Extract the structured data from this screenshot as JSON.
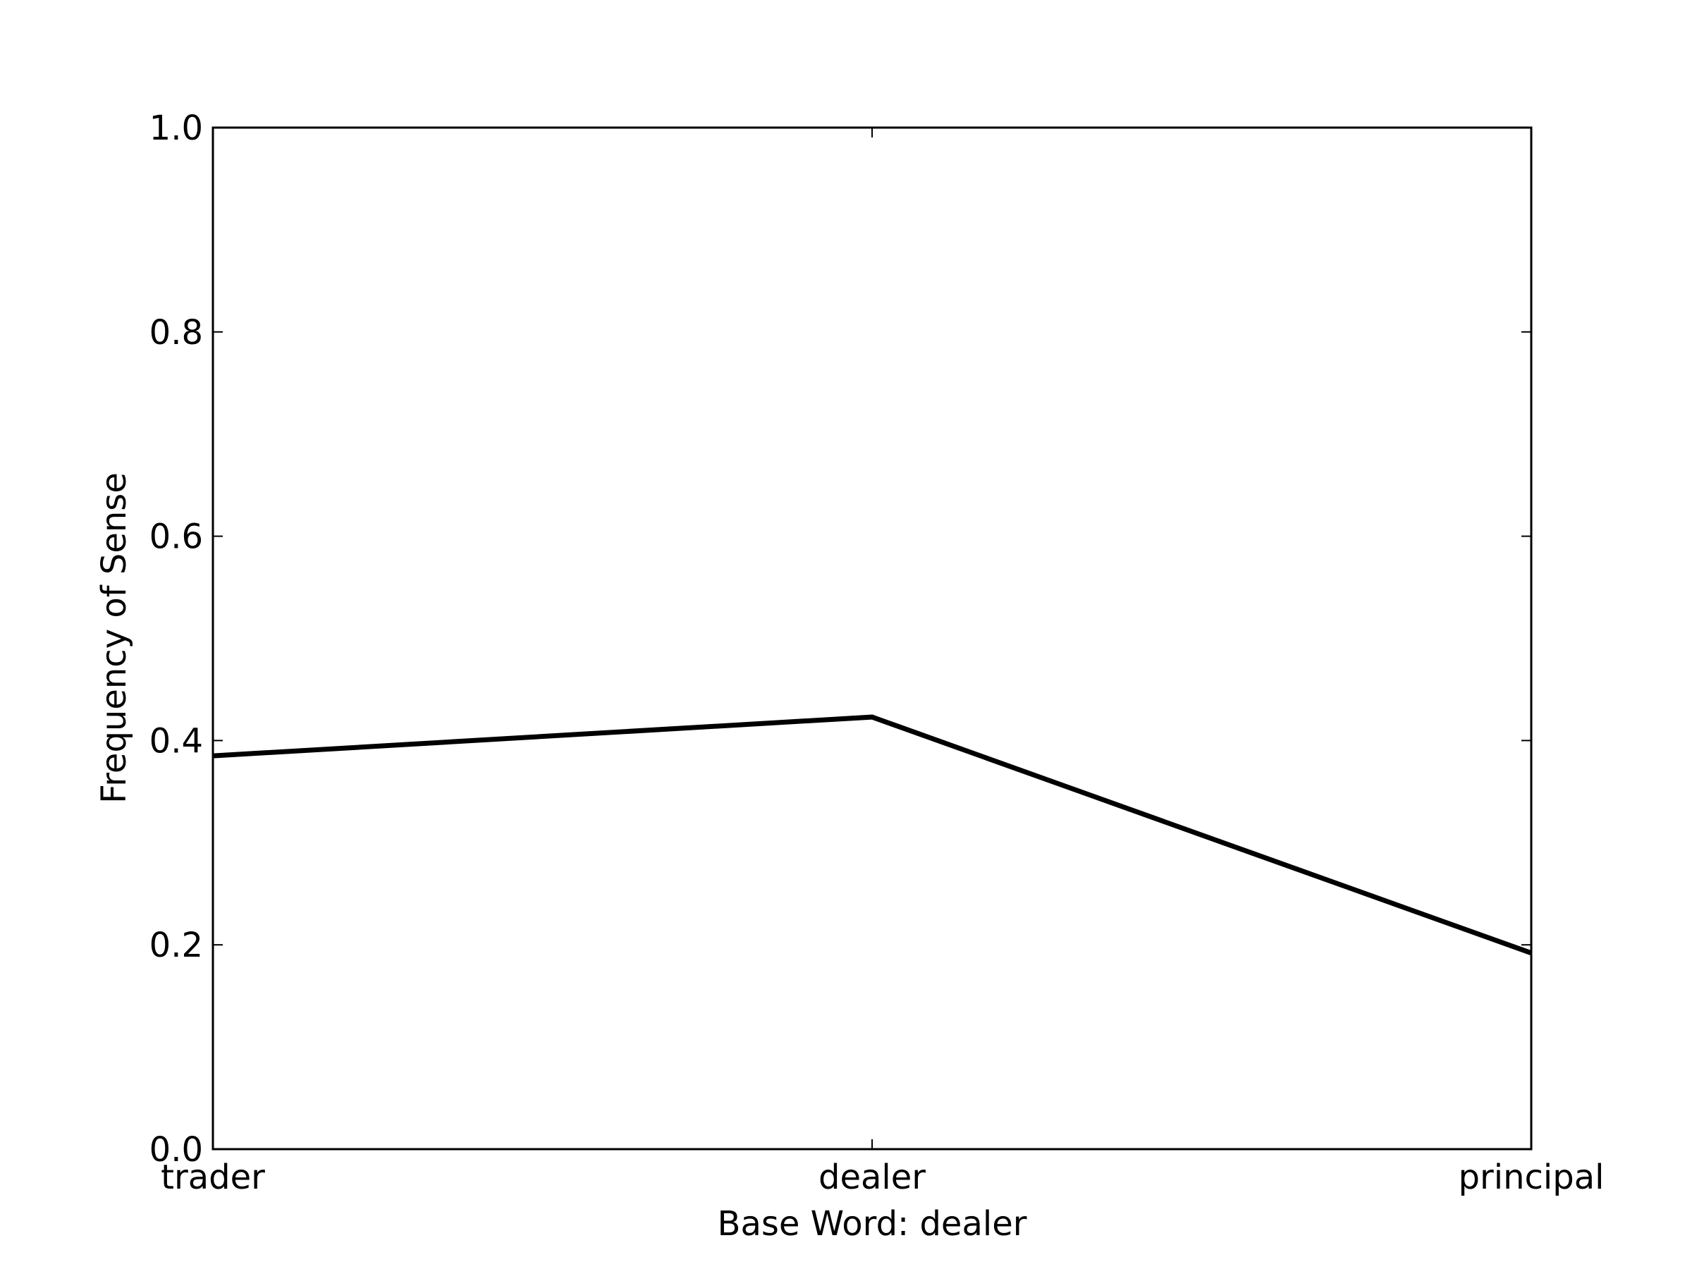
{
  "chart_data": {
    "type": "line",
    "title": "",
    "xlabel": "Base Word: dealer",
    "ylabel": "Frequency of Sense",
    "categories": [
      "trader",
      "dealer",
      "principal"
    ],
    "series": [
      {
        "values": [
          0.385,
          0.423,
          0.192
        ]
      }
    ],
    "ylim": [
      0.0,
      1.0
    ],
    "yticks": [
      "0.0",
      "0.2",
      "0.4",
      "0.6",
      "0.8",
      "1.0"
    ],
    "grid": false,
    "legend": "none",
    "line_color": "#000000"
  }
}
